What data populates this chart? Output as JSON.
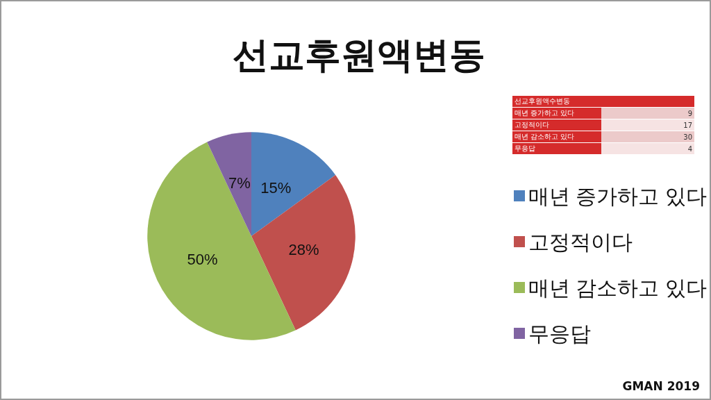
{
  "chart_data": {
    "type": "pie",
    "title": "선교후원액변동",
    "categories": [
      "매년 증가하고 있다",
      "고정적이다",
      "매년 감소하고 있다",
      "무응답"
    ],
    "values": [
      15,
      28,
      50,
      7
    ],
    "value_labels": [
      "15%",
      "28%",
      "50%",
      "7%"
    ],
    "colors": [
      "#4f81bd",
      "#c0504d",
      "#9bbb59",
      "#8064a2"
    ],
    "legend": "right",
    "annotations": [
      "선교후원액수변동",
      "GMAN 2019",
      "9",
      "17",
      "30",
      "4"
    ]
  }
}
